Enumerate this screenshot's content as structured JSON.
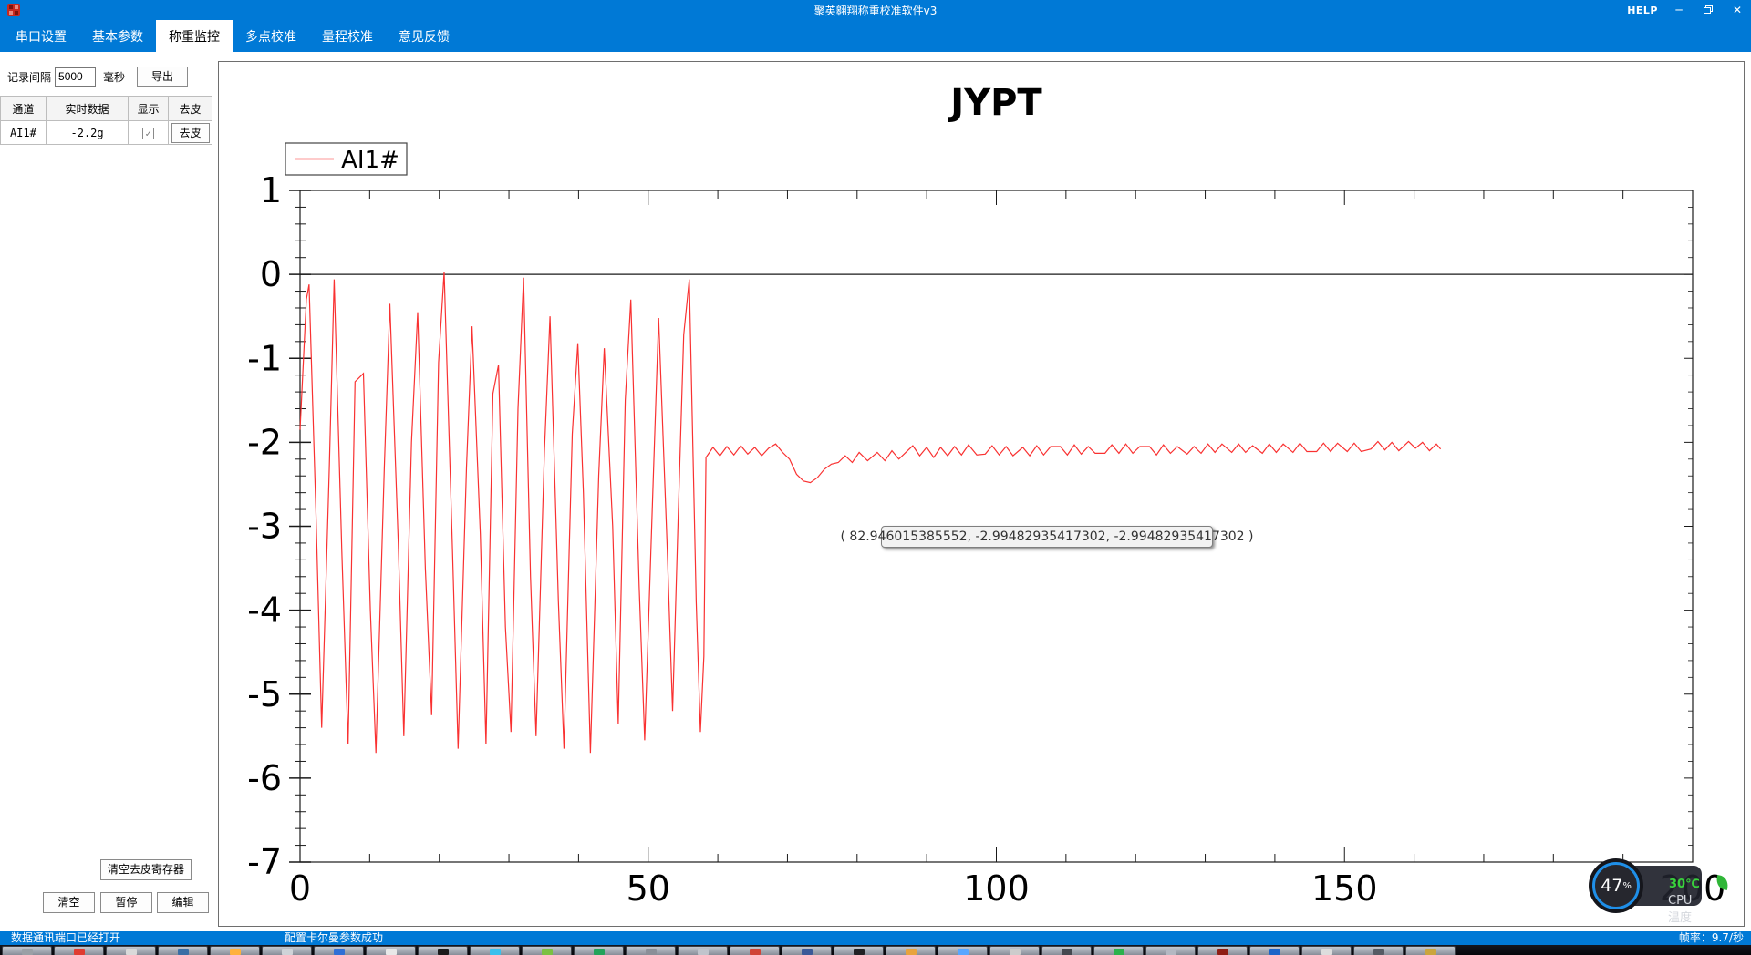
{
  "window": {
    "title": "聚英翱翔称重校准软件v3",
    "help_label": "HELP",
    "minimize_glyph": "─",
    "close_glyph": "✕"
  },
  "menubar": {
    "tabs": [
      {
        "label": "串口设置",
        "active": false
      },
      {
        "label": "基本参数",
        "active": false
      },
      {
        "label": "称重监控",
        "active": true
      },
      {
        "label": "多点校准",
        "active": false
      },
      {
        "label": "量程校准",
        "active": false
      },
      {
        "label": "意见反馈",
        "active": false
      }
    ]
  },
  "sidebar": {
    "interval_label": "记录间隔",
    "interval_value": "5000",
    "interval_unit": "毫秒",
    "export_label": "导出",
    "table": {
      "headers": [
        "通道",
        "实时数据",
        "显示",
        "去皮"
      ],
      "row": {
        "channel": "AI1#",
        "value": "-2.2g",
        "display_checked": true,
        "check_glyph": "✓",
        "tare_label": "去皮"
      }
    },
    "clear_tare_register_label": "清空去皮寄存器",
    "clear_label": "清空",
    "pause_label": "暂停",
    "edit_label": "编辑"
  },
  "statusbar": {
    "left": "数据通讯端口已经打开",
    "middle": "配置卡尔曼参数成功",
    "right": "帧率：9.7/秒"
  },
  "cpu_widget": {
    "percent": "47",
    "percent_symbol": "%",
    "temperature": "30℃",
    "label": "CPU温度",
    "ring_color": "#1f8fe8",
    "temp_color": "#39d23c"
  },
  "chart_data": {
    "type": "line",
    "title": "JYPT",
    "xlabel": "",
    "ylabel": "",
    "xlim": [
      0,
      200
    ],
    "ylim": [
      -7,
      1
    ],
    "x_major_ticks": [
      0,
      50,
      100,
      150,
      200
    ],
    "y_major_ticks": [
      1,
      0,
      -1,
      -2,
      -3,
      -4,
      -5,
      -6,
      -7
    ],
    "x_minor_step": 10,
    "y_minor_step": 0.2,
    "zero_line": true,
    "grid": false,
    "legend_position": "top-left",
    "legend": [
      "AI1#"
    ],
    "line_color": "#f93131",
    "tooltip_text": "( 82.946015385552, -2.99482935417302, -2.99482935417302 )",
    "series": [
      {
        "name": "AI1#",
        "points": [
          [
            0,
            -1.85
          ],
          [
            0.9,
            -0.3
          ],
          [
            1.3,
            -0.12
          ],
          [
            2.3,
            -2.9
          ],
          [
            3.1,
            -5.4
          ],
          [
            4.2,
            -2.3
          ],
          [
            4.9,
            -0.06
          ],
          [
            6,
            -3.3
          ],
          [
            6.9,
            -5.6
          ],
          [
            7.9,
            -1.28
          ],
          [
            9.1,
            -1.18
          ],
          [
            10.1,
            -4.0
          ],
          [
            10.9,
            -5.7
          ],
          [
            12.1,
            -2.3
          ],
          [
            12.9,
            -0.35
          ],
          [
            14.1,
            -3.2
          ],
          [
            14.9,
            -5.5
          ],
          [
            16,
            -2.0
          ],
          [
            16.9,
            -0.45
          ],
          [
            18,
            -3.5
          ],
          [
            18.9,
            -5.25
          ],
          [
            19.9,
            -1.05
          ],
          [
            20.7,
            0.03
          ],
          [
            21.9,
            -3.3
          ],
          [
            22.7,
            -5.65
          ],
          [
            23.9,
            -2.3
          ],
          [
            24.7,
            -0.62
          ],
          [
            25.9,
            -3.1
          ],
          [
            26.7,
            -5.6
          ],
          [
            27.7,
            -1.42
          ],
          [
            28.5,
            -1.08
          ],
          [
            29.5,
            -4.2
          ],
          [
            30.3,
            -5.45
          ],
          [
            31.3,
            -1.6
          ],
          [
            32.1,
            -0.04
          ],
          [
            33.1,
            -3.6
          ],
          [
            33.9,
            -5.5
          ],
          [
            35.1,
            -2.1
          ],
          [
            35.9,
            -0.5
          ],
          [
            37.1,
            -3.9
          ],
          [
            37.9,
            -5.65
          ],
          [
            39.1,
            -1.9
          ],
          [
            39.9,
            -0.82
          ],
          [
            40.7,
            -2.6
          ],
          [
            41.7,
            -5.7
          ],
          [
            42.9,
            -2.4
          ],
          [
            43.7,
            -0.88
          ],
          [
            44.9,
            -3.0
          ],
          [
            45.7,
            -5.35
          ],
          [
            46.7,
            -1.5
          ],
          [
            47.5,
            -0.3
          ],
          [
            48.7,
            -3.7
          ],
          [
            49.5,
            -5.55
          ],
          [
            50.7,
            -2.5
          ],
          [
            51.5,
            -0.52
          ],
          [
            52.7,
            -3.2
          ],
          [
            53.5,
            -5.2
          ],
          [
            54.3,
            -2.9
          ],
          [
            55.1,
            -0.72
          ],
          [
            55.9,
            -0.06
          ],
          [
            56.9,
            -3.9
          ],
          [
            57.5,
            -5.45
          ],
          [
            58,
            -4.55
          ],
          [
            58.3,
            -2.18
          ],
          [
            59.3,
            -2.06
          ],
          [
            60.3,
            -2.16
          ],
          [
            61.3,
            -2.05
          ],
          [
            62.3,
            -2.15
          ],
          [
            63.3,
            -2.04
          ],
          [
            64.3,
            -2.14
          ],
          [
            65.3,
            -2.06
          ],
          [
            66.3,
            -2.16
          ],
          [
            67.3,
            -2.07
          ],
          [
            68.3,
            -2.02
          ],
          [
            69.3,
            -2.12
          ],
          [
            70.3,
            -2.2
          ],
          [
            71.3,
            -2.38
          ],
          [
            72.3,
            -2.46
          ],
          [
            73.3,
            -2.48
          ],
          [
            74.3,
            -2.42
          ],
          [
            75.3,
            -2.32
          ],
          [
            76.3,
            -2.26
          ],
          [
            77.3,
            -2.24
          ],
          [
            78.3,
            -2.16
          ],
          [
            79.3,
            -2.24
          ],
          [
            80.3,
            -2.12
          ],
          [
            81.5,
            -2.22
          ],
          [
            82.9,
            -2.12
          ],
          [
            84,
            -2.22
          ],
          [
            85,
            -2.1
          ],
          [
            86,
            -2.2
          ],
          [
            87,
            -2.12
          ],
          [
            88,
            -2.04
          ],
          [
            89,
            -2.16
          ],
          [
            90,
            -2.06
          ],
          [
            91,
            -2.18
          ],
          [
            92,
            -2.06
          ],
          [
            93,
            -2.16
          ],
          [
            94,
            -2.05
          ],
          [
            95,
            -2.15
          ],
          [
            96,
            -2.03
          ],
          [
            97.2,
            -2.15
          ],
          [
            98.4,
            -2.14
          ],
          [
            99.4,
            -2.04
          ],
          [
            100.4,
            -2.15
          ],
          [
            101.4,
            -2.05
          ],
          [
            102.4,
            -2.16
          ],
          [
            103.8,
            -2.06
          ],
          [
            104.8,
            -2.16
          ],
          [
            105.8,
            -2.04
          ],
          [
            106.8,
            -2.15
          ],
          [
            107.8,
            -2.05
          ],
          [
            109.2,
            -2.05
          ],
          [
            110.2,
            -2.15
          ],
          [
            111.2,
            -2.03
          ],
          [
            112.2,
            -2.14
          ],
          [
            113.2,
            -2.05
          ],
          [
            114.2,
            -2.13
          ],
          [
            115.6,
            -2.13
          ],
          [
            116.6,
            -2.03
          ],
          [
            117.6,
            -2.13
          ],
          [
            118.6,
            -2.02
          ],
          [
            119.6,
            -2.13
          ],
          [
            120.6,
            -2.05
          ],
          [
            122,
            -2.05
          ],
          [
            123,
            -2.15
          ],
          [
            124,
            -2.03
          ],
          [
            125,
            -2.13
          ],
          [
            126,
            -2.05
          ],
          [
            127.4,
            -2.14
          ],
          [
            128.4,
            -2.05
          ],
          [
            129.4,
            -2.13
          ],
          [
            130.4,
            -2.02
          ],
          [
            131.4,
            -2.12
          ],
          [
            132.4,
            -2.02
          ],
          [
            133.8,
            -2.12
          ],
          [
            134.8,
            -2.02
          ],
          [
            135.8,
            -2.12
          ],
          [
            136.8,
            -2.04
          ],
          [
            138.2,
            -2.13
          ],
          [
            139.2,
            -2.02
          ],
          [
            140.2,
            -2.12
          ],
          [
            141.2,
            -2.02
          ],
          [
            142.6,
            -2.12
          ],
          [
            143.6,
            -2.01
          ],
          [
            144.6,
            -2.11
          ],
          [
            146,
            -2.11
          ],
          [
            147,
            -2.01
          ],
          [
            148,
            -2.11
          ],
          [
            149,
            -2.01
          ],
          [
            150.4,
            -2.11
          ],
          [
            151.4,
            -2.01
          ],
          [
            152.4,
            -2.11
          ],
          [
            153.8,
            -2.08
          ],
          [
            154.8,
            -1.99
          ],
          [
            155.8,
            -2.09
          ],
          [
            156.8,
            -2.0
          ],
          [
            157.8,
            -2.1
          ],
          [
            159.2,
            -1.99
          ],
          [
            160.2,
            -2.07
          ],
          [
            161.2,
            -2.0
          ],
          [
            162.2,
            -2.1
          ],
          [
            163.2,
            -2.02
          ],
          [
            163.8,
            -2.08
          ]
        ]
      }
    ]
  },
  "taskbar": {
    "buttons": [
      {
        "hint": "#9aa0a6"
      },
      {
        "hint": "#e03c31"
      },
      {
        "hint": "#d9d9d9"
      },
      {
        "hint": "#3a6ea5"
      },
      {
        "hint": "#ffb13b"
      },
      {
        "hint": "#cfd3d8"
      },
      {
        "hint": "#2f6fd6"
      },
      {
        "hint": "#e8e8e8"
      },
      {
        "hint": "#1b1b1b"
      },
      {
        "hint": "#39c0ed"
      },
      {
        "hint": "#7ac143"
      },
      {
        "hint": "#23a35a"
      },
      {
        "hint": "#8a8f98"
      },
      {
        "hint": "#c0c4cc"
      },
      {
        "hint": "#d04437"
      },
      {
        "hint": "#3b5998"
      },
      {
        "hint": "#202124"
      },
      {
        "hint": "#e8a33d"
      },
      {
        "hint": "#58a6ff"
      },
      {
        "hint": "#cccccc"
      },
      {
        "hint": "#444950"
      },
      {
        "hint": "#2bb24c"
      },
      {
        "hint": "#b3b8c2"
      },
      {
        "hint": "#8f1d14"
      },
      {
        "hint": "#1c64c8"
      },
      {
        "hint": "#dddddd"
      },
      {
        "hint": "#555b64"
      },
      {
        "hint": "#caa53d"
      }
    ]
  }
}
